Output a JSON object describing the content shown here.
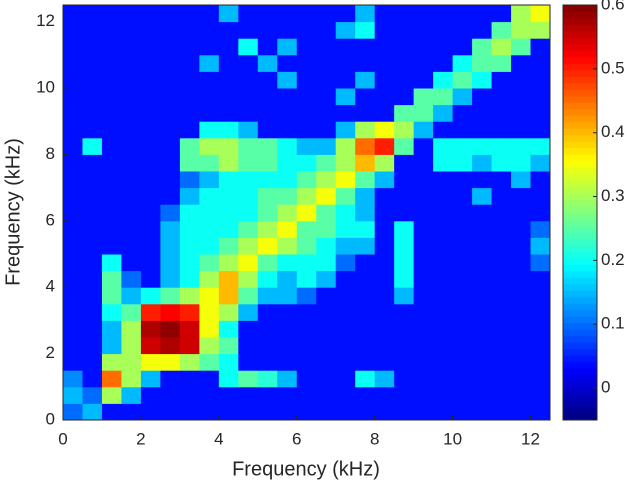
{
  "chart_data": {
    "type": "heatmap",
    "x_label": "Frequency (kHz)",
    "y_label": "Frequency (kHz)",
    "x": [
      0.25,
      0.75,
      1.25,
      1.75,
      2.25,
      2.75,
      3.25,
      3.75,
      4.25,
      4.75,
      5.25,
      5.75,
      6.25,
      6.75,
      7.25,
      7.75,
      8.25,
      8.75,
      9.25,
      9.75,
      10.25,
      10.75,
      11.25,
      11.75,
      12.25
    ],
    "y": [
      0.25,
      0.75,
      1.25,
      1.75,
      2.25,
      2.75,
      3.25,
      3.75,
      4.25,
      4.75,
      5.25,
      5.75,
      6.25,
      6.75,
      7.25,
      7.75,
      8.25,
      8.75,
      9.25,
      9.75,
      10.25,
      10.75,
      11.25,
      11.75,
      12.25
    ],
    "xlim": [
      0,
      12.5
    ],
    "ylim": [
      0,
      12.5
    ],
    "xticks": [
      0,
      2,
      4,
      6,
      8,
      10,
      12
    ],
    "yticks": [
      0,
      2,
      4,
      6,
      8,
      10,
      12
    ],
    "colormap": "jet",
    "clim": [
      -0.05,
      0.6
    ],
    "cticks": [
      0,
      0.1,
      0.2,
      0.3,
      0.4,
      0.5,
      0.6
    ],
    "z": [
      [
        0.1,
        0.15,
        0.04,
        0.04,
        0.04,
        0.04,
        0.04,
        0.04,
        0.04,
        0.04,
        0.04,
        0.04,
        0.04,
        0.04,
        0.04,
        0.04,
        0.04,
        0.04,
        0.04,
        0.04,
        0.04,
        0.04,
        0.04,
        0.04,
        0.04
      ],
      [
        0.15,
        0.1,
        0.3,
        0.15,
        0.04,
        0.04,
        0.04,
        0.04,
        0.04,
        0.04,
        0.04,
        0.04,
        0.04,
        0.04,
        0.04,
        0.04,
        0.04,
        0.04,
        0.04,
        0.04,
        0.04,
        0.04,
        0.04,
        0.04,
        0.04
      ],
      [
        0.12,
        0.04,
        0.45,
        0.3,
        0.15,
        0.04,
        0.04,
        0.04,
        0.2,
        0.25,
        0.22,
        0.15,
        0.04,
        0.04,
        0.04,
        0.2,
        0.15,
        0.04,
        0.04,
        0.04,
        0.04,
        0.04,
        0.04,
        0.04,
        0.04
      ],
      [
        0.04,
        0.04,
        0.3,
        0.3,
        0.35,
        0.35,
        0.3,
        0.25,
        0.2,
        0.04,
        0.04,
        0.04,
        0.04,
        0.04,
        0.04,
        0.04,
        0.04,
        0.04,
        0.04,
        0.04,
        0.04,
        0.04,
        0.04,
        0.04,
        0.04
      ],
      [
        0.04,
        0.04,
        0.15,
        0.3,
        0.55,
        0.57,
        0.55,
        0.3,
        0.25,
        0.04,
        0.04,
        0.04,
        0.04,
        0.04,
        0.04,
        0.04,
        0.04,
        0.04,
        0.04,
        0.04,
        0.04,
        0.04,
        0.04,
        0.04,
        0.04
      ],
      [
        0.04,
        0.04,
        0.15,
        0.3,
        0.57,
        0.59,
        0.55,
        0.35,
        0.2,
        0.04,
        0.04,
        0.04,
        0.04,
        0.04,
        0.04,
        0.04,
        0.04,
        0.04,
        0.04,
        0.04,
        0.04,
        0.04,
        0.04,
        0.04,
        0.04
      ],
      [
        0.04,
        0.04,
        0.2,
        0.25,
        0.5,
        0.52,
        0.5,
        0.35,
        0.3,
        0.15,
        0.04,
        0.04,
        0.04,
        0.04,
        0.04,
        0.04,
        0.04,
        0.04,
        0.04,
        0.04,
        0.04,
        0.04,
        0.04,
        0.04,
        0.04
      ],
      [
        0.04,
        0.04,
        0.25,
        0.15,
        0.2,
        0.25,
        0.3,
        0.35,
        0.4,
        0.25,
        0.15,
        0.15,
        0.1,
        0.04,
        0.04,
        0.04,
        0.04,
        0.15,
        0.04,
        0.04,
        0.04,
        0.04,
        0.04,
        0.04,
        0.04
      ],
      [
        0.04,
        0.04,
        0.25,
        0.1,
        0.04,
        0.15,
        0.2,
        0.3,
        0.4,
        0.3,
        0.2,
        0.15,
        0.2,
        0.15,
        0.04,
        0.04,
        0.04,
        0.2,
        0.04,
        0.04,
        0.04,
        0.04,
        0.04,
        0.04,
        0.04
      ],
      [
        0.04,
        0.04,
        0.2,
        0.04,
        0.04,
        0.15,
        0.2,
        0.25,
        0.3,
        0.35,
        0.25,
        0.2,
        0.2,
        0.2,
        0.1,
        0.04,
        0.04,
        0.2,
        0.04,
        0.04,
        0.04,
        0.04,
        0.04,
        0.04,
        0.1
      ],
      [
        0.04,
        0.04,
        0.04,
        0.04,
        0.04,
        0.15,
        0.2,
        0.2,
        0.25,
        0.3,
        0.35,
        0.3,
        0.25,
        0.2,
        0.15,
        0.15,
        0.04,
        0.2,
        0.04,
        0.04,
        0.04,
        0.04,
        0.04,
        0.04,
        0.15
      ],
      [
        0.04,
        0.04,
        0.04,
        0.04,
        0.04,
        0.15,
        0.2,
        0.2,
        0.2,
        0.25,
        0.3,
        0.35,
        0.25,
        0.25,
        0.2,
        0.2,
        0.04,
        0.2,
        0.04,
        0.04,
        0.04,
        0.04,
        0.04,
        0.04,
        0.1
      ],
      [
        0.04,
        0.04,
        0.04,
        0.04,
        0.04,
        0.1,
        0.2,
        0.2,
        0.2,
        0.2,
        0.25,
        0.3,
        0.35,
        0.25,
        0.2,
        0.15,
        0.04,
        0.04,
        0.04,
        0.04,
        0.04,
        0.04,
        0.04,
        0.04,
        0.04
      ],
      [
        0.04,
        0.04,
        0.04,
        0.04,
        0.04,
        0.04,
        0.15,
        0.2,
        0.2,
        0.2,
        0.25,
        0.25,
        0.3,
        0.35,
        0.25,
        0.15,
        0.04,
        0.04,
        0.04,
        0.04,
        0.04,
        0.15,
        0.04,
        0.04,
        0.04
      ],
      [
        0.04,
        0.04,
        0.04,
        0.04,
        0.04,
        0.04,
        0.1,
        0.15,
        0.2,
        0.2,
        0.2,
        0.2,
        0.25,
        0.3,
        0.35,
        0.25,
        0.15,
        0.04,
        0.04,
        0.04,
        0.04,
        0.04,
        0.04,
        0.15,
        0.04
      ],
      [
        0.04,
        0.04,
        0.04,
        0.04,
        0.04,
        0.04,
        0.25,
        0.25,
        0.3,
        0.25,
        0.25,
        0.2,
        0.2,
        0.25,
        0.3,
        0.4,
        0.3,
        0.04,
        0.04,
        0.2,
        0.2,
        0.15,
        0.2,
        0.2,
        0.15
      ],
      [
        0.04,
        0.2,
        0.04,
        0.04,
        0.04,
        0.04,
        0.25,
        0.3,
        0.3,
        0.25,
        0.25,
        0.2,
        0.15,
        0.15,
        0.3,
        0.45,
        0.5,
        0.25,
        0.04,
        0.2,
        0.2,
        0.2,
        0.2,
        0.2,
        0.2
      ],
      [
        0.04,
        0.04,
        0.04,
        0.04,
        0.04,
        0.04,
        0.04,
        0.2,
        0.2,
        0.15,
        0.04,
        0.04,
        0.04,
        0.04,
        0.15,
        0.3,
        0.35,
        0.3,
        0.15,
        0.04,
        0.04,
        0.04,
        0.04,
        0.04,
        0.04
      ],
      [
        0.04,
        0.04,
        0.04,
        0.04,
        0.04,
        0.04,
        0.04,
        0.04,
        0.04,
        0.04,
        0.04,
        0.04,
        0.04,
        0.04,
        0.04,
        0.04,
        0.04,
        0.25,
        0.25,
        0.15,
        0.04,
        0.04,
        0.04,
        0.04,
        0.04
      ],
      [
        0.04,
        0.04,
        0.04,
        0.04,
        0.04,
        0.04,
        0.04,
        0.04,
        0.04,
        0.04,
        0.04,
        0.04,
        0.04,
        0.04,
        0.15,
        0.04,
        0.04,
        0.04,
        0.25,
        0.25,
        0.15,
        0.04,
        0.04,
        0.04,
        0.04
      ],
      [
        0.04,
        0.04,
        0.04,
        0.04,
        0.04,
        0.04,
        0.04,
        0.04,
        0.04,
        0.04,
        0.04,
        0.15,
        0.04,
        0.04,
        0.04,
        0.15,
        0.04,
        0.04,
        0.04,
        0.2,
        0.25,
        0.2,
        0.04,
        0.04,
        0.04
      ],
      [
        0.04,
        0.04,
        0.04,
        0.04,
        0.04,
        0.04,
        0.04,
        0.15,
        0.04,
        0.04,
        0.15,
        0.04,
        0.04,
        0.04,
        0.04,
        0.04,
        0.04,
        0.04,
        0.04,
        0.04,
        0.2,
        0.25,
        0.25,
        0.04,
        0.04
      ],
      [
        0.04,
        0.04,
        0.04,
        0.04,
        0.04,
        0.04,
        0.04,
        0.04,
        0.04,
        0.2,
        0.04,
        0.15,
        0.04,
        0.04,
        0.04,
        0.04,
        0.04,
        0.04,
        0.04,
        0.04,
        0.04,
        0.25,
        0.3,
        0.25,
        0.04
      ],
      [
        0.04,
        0.04,
        0.04,
        0.04,
        0.04,
        0.04,
        0.04,
        0.04,
        0.04,
        0.04,
        0.04,
        0.04,
        0.04,
        0.04,
        0.15,
        0.2,
        0.04,
        0.04,
        0.04,
        0.04,
        0.04,
        0.04,
        0.25,
        0.3,
        0.3
      ],
      [
        0.04,
        0.04,
        0.04,
        0.04,
        0.04,
        0.04,
        0.04,
        0.04,
        0.15,
        0.04,
        0.04,
        0.04,
        0.04,
        0.04,
        0.04,
        0.15,
        0.04,
        0.04,
        0.04,
        0.04,
        0.04,
        0.04,
        0.04,
        0.3,
        0.35
      ]
    ]
  }
}
